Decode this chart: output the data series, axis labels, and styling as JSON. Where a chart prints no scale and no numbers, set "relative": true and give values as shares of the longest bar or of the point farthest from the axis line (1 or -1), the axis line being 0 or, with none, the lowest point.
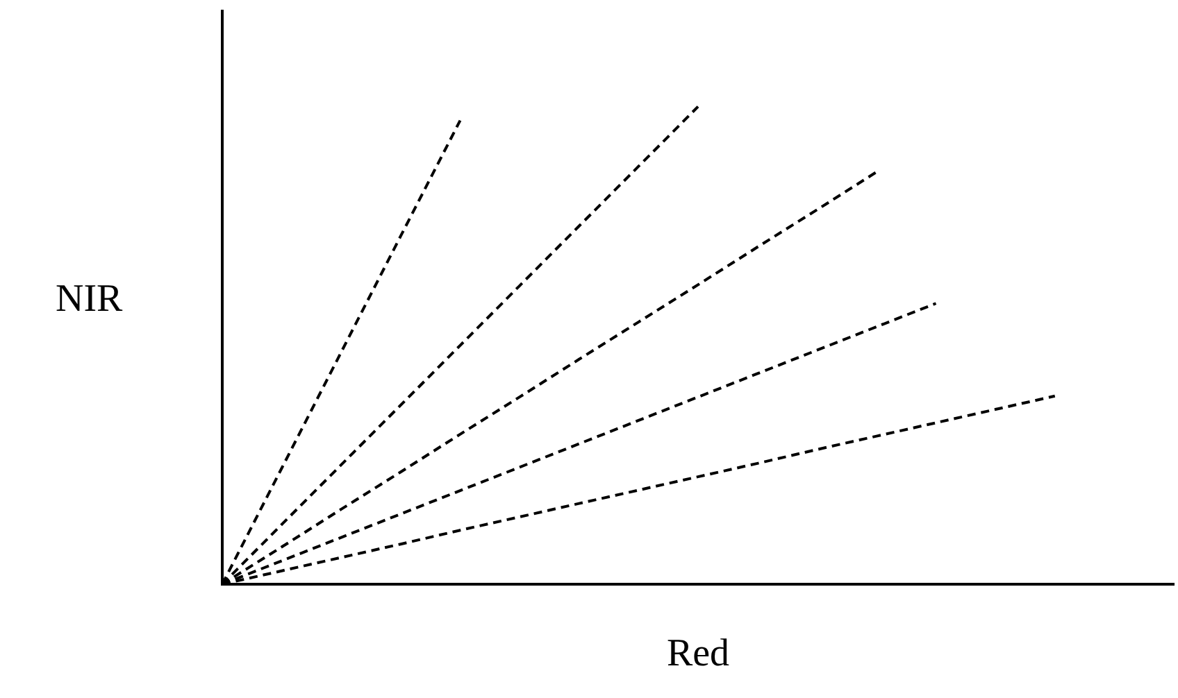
{
  "chart_data": {
    "type": "line",
    "xlabel": "Red",
    "ylabel": "NIR",
    "relative": true,
    "line_style": "dashed",
    "marker": "none",
    "grid": false,
    "legend": false,
    "categories": [
      null,
      null,
      null,
      null,
      null,
      null,
      null,
      null,
      null,
      null,
      null,
      null,
      null,
      null,
      null,
      null,
      null
    ],
    "series": [
      {
        "color": "#000000",
        "values": [
          0,
          0.243,
          0.486,
          0.729,
          0.971,
          null,
          null,
          null,
          null,
          null,
          null,
          null,
          null,
          null,
          null,
          null,
          null
        ]
      },
      {
        "color": "#000000",
        "values": [
          0,
          0.125,
          0.25,
          0.375,
          0.5,
          0.625,
          0.75,
          0.875,
          1,
          null,
          null,
          null,
          null,
          null,
          null,
          null,
          null
        ]
      },
      {
        "color": "#000000",
        "values": [
          0,
          0.078,
          0.157,
          0.235,
          0.314,
          0.392,
          0.471,
          0.549,
          0.627,
          0.706,
          0.784,
          0.863,
          null,
          null,
          null,
          null,
          null
        ]
      },
      {
        "color": "#000000",
        "values": [
          0,
          0.049,
          0.098,
          0.147,
          0.196,
          0.245,
          0.294,
          0.343,
          0.392,
          0.441,
          0.49,
          0.539,
          0.588,
          null,
          null,
          null,
          null
        ]
      },
      {
        "color": "#000000",
        "values": [
          0,
          0.028,
          0.056,
          0.084,
          0.113,
          0.141,
          0.169,
          0.197,
          0.225,
          0.253,
          0.282,
          0.31,
          0.338,
          0.366,
          0.394,
          null,
          null
        ]
      }
    ]
  }
}
